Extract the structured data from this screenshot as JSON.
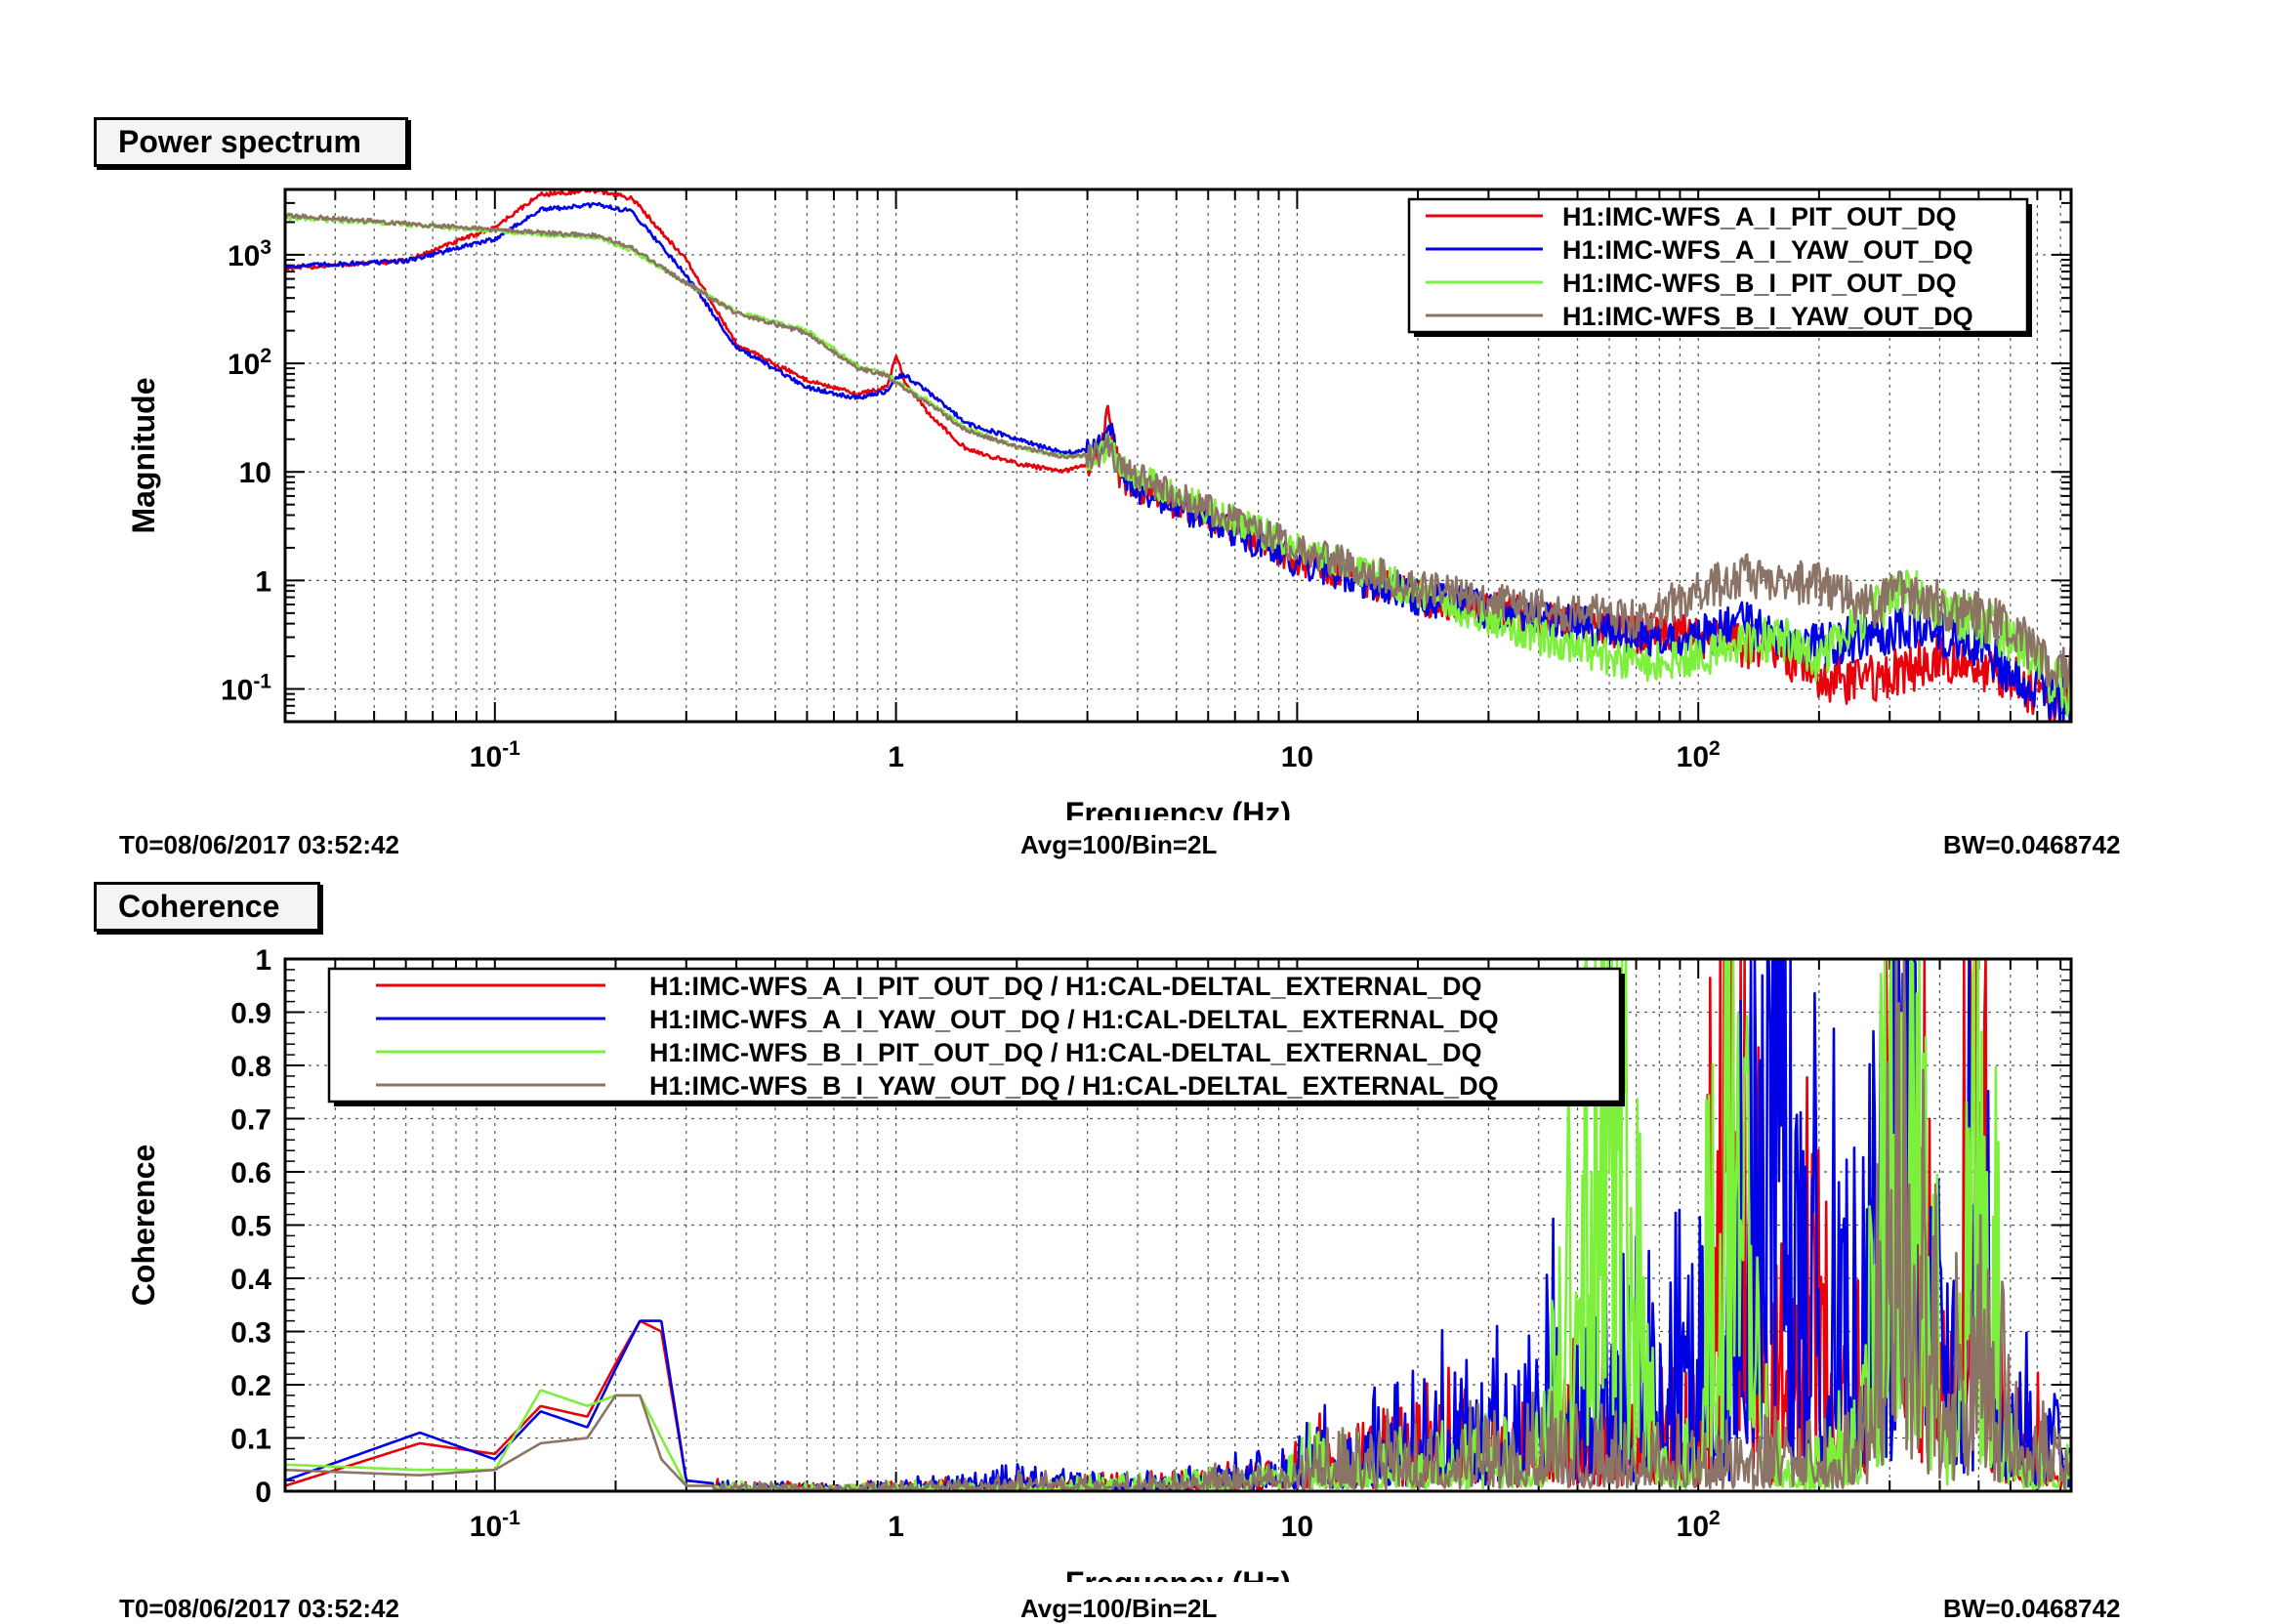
{
  "panels": [
    {
      "tab_label": "Power spectrum",
      "footer": {
        "t0": "T0=08/06/2017 03:52:42",
        "avg": "Avg=100/Bin=2L",
        "bw": "BW=0.0468742"
      }
    },
    {
      "tab_label": "Coherence",
      "footer": {
        "t0": "T0=08/06/2017 03:52:42",
        "avg": "Avg=100/Bin=2L",
        "bw": "BW=0.0468742"
      }
    }
  ],
  "colors": {
    "red": "#e8000b",
    "blue": "#0000e6",
    "green": "#7cf03a",
    "brown": "#8b7366"
  },
  "chart_data": [
    {
      "type": "line",
      "title": "Power spectrum",
      "xlabel": "Frequency (Hz)",
      "ylabel": "Magnitude",
      "xscale": "log",
      "yscale": "log",
      "xlim": [
        0.03,
        850
      ],
      "ylim": [
        0.05,
        4000
      ],
      "x_tick_labels": [
        "10^-1",
        "1",
        "10",
        "10^2"
      ],
      "y_tick_labels": [
        "10^-1",
        "1",
        "10",
        "10^2",
        "10^3"
      ],
      "grid": true,
      "legend_position": "top-right",
      "series": [
        {
          "name": "H1:IMC-WFS_A_I_PIT_OUT_DQ",
          "color": "#e8000b",
          "x": [
            0.03,
            0.06,
            0.1,
            0.13,
            0.18,
            0.22,
            0.3,
            0.4,
            0.6,
            0.8,
            0.95,
            1.0,
            1.05,
            1.2,
            1.5,
            2,
            2.6,
            3.2,
            3.4,
            3.6,
            4,
            6,
            10,
            20,
            40,
            70,
            100,
            130,
            160,
            200,
            260,
            330,
            400,
            500,
            600,
            800
          ],
          "y": [
            750,
            880,
            1800,
            3600,
            3900,
            3300,
            900,
            150,
            70,
            52,
            60,
            120,
            70,
            35,
            16,
            12,
            10,
            13,
            40,
            9,
            7,
            3.8,
            1.6,
            0.7,
            0.45,
            0.33,
            0.3,
            0.25,
            0.23,
            0.12,
            0.12,
            0.15,
            0.2,
            0.15,
            0.12,
            0.08
          ]
        },
        {
          "name": "H1:IMC-WFS_A_I_YAW_OUT_DQ",
          "color": "#0000e6",
          "x": [
            0.03,
            0.06,
            0.1,
            0.13,
            0.18,
            0.22,
            0.3,
            0.4,
            0.6,
            0.8,
            0.95,
            1.0,
            1.05,
            1.2,
            1.5,
            2,
            2.6,
            3.2,
            3.4,
            3.6,
            4,
            6,
            10,
            20,
            40,
            70,
            100,
            130,
            160,
            200,
            260,
            330,
            400,
            500,
            600,
            800
          ],
          "y": [
            780,
            880,
            1400,
            2600,
            2900,
            2500,
            650,
            140,
            60,
            48,
            55,
            75,
            78,
            55,
            28,
            20,
            15,
            16,
            28,
            10,
            7,
            3.5,
            1.5,
            0.7,
            0.45,
            0.32,
            0.3,
            0.4,
            0.3,
            0.25,
            0.3,
            0.4,
            0.35,
            0.25,
            0.15,
            0.08
          ]
        },
        {
          "name": "H1:IMC-WFS_B_I_PIT_OUT_DQ",
          "color": "#7cf03a",
          "x": [
            0.03,
            0.06,
            0.1,
            0.13,
            0.18,
            0.22,
            0.3,
            0.4,
            0.6,
            0.8,
            0.95,
            1.0,
            1.05,
            1.2,
            1.5,
            2,
            2.6,
            3.2,
            3.4,
            3.6,
            4,
            6,
            10,
            20,
            40,
            70,
            100,
            130,
            160,
            200,
            260,
            330,
            400,
            500,
            600,
            800
          ],
          "y": [
            2200,
            1900,
            1650,
            1550,
            1450,
            1100,
            550,
            300,
            200,
            95,
            80,
            68,
            60,
            45,
            25,
            17,
            14,
            14,
            18,
            11,
            9,
            4.5,
            2,
            0.8,
            0.3,
            0.18,
            0.2,
            0.25,
            0.3,
            0.18,
            0.5,
            0.8,
            0.6,
            0.4,
            0.3,
            0.1
          ]
        },
        {
          "name": "H1:IMC-WFS_B_I_YAW_OUT_DQ",
          "color": "#8b7366",
          "x": [
            0.03,
            0.06,
            0.1,
            0.13,
            0.18,
            0.22,
            0.3,
            0.4,
            0.6,
            0.8,
            0.95,
            1.0,
            1.05,
            1.2,
            1.5,
            2,
            2.6,
            3.2,
            3.4,
            3.6,
            4,
            6,
            10,
            20,
            40,
            70,
            100,
            130,
            160,
            200,
            260,
            330,
            400,
            500,
            600,
            800
          ],
          "y": [
            2300,
            1950,
            1700,
            1600,
            1500,
            1150,
            550,
            290,
            190,
            90,
            78,
            65,
            58,
            43,
            24,
            17,
            14,
            14,
            18,
            11,
            9,
            4.5,
            2,
            0.85,
            0.55,
            0.45,
            0.8,
            1.1,
            0.9,
            1.0,
            0.55,
            0.8,
            0.6,
            0.45,
            0.35,
            0.15
          ]
        }
      ]
    },
    {
      "type": "line",
      "title": "Coherence",
      "xlabel": "Frequency (Hz)",
      "ylabel": "Coherence",
      "xscale": "log",
      "yscale": "linear",
      "xlim": [
        0.03,
        850
      ],
      "ylim": [
        0,
        1
      ],
      "x_tick_labels": [
        "10^-1",
        "1",
        "10",
        "10^2"
      ],
      "y_tick_labels": [
        "0",
        "0.1",
        "0.2",
        "0.3",
        "0.4",
        "0.5",
        "0.6",
        "0.7",
        "0.8",
        "0.9",
        "1"
      ],
      "grid": true,
      "legend_position": "top-left",
      "series": [
        {
          "name": "H1:IMC-WFS_A_I_PIT_OUT_DQ / H1:CAL-DELTAL_EXTERNAL_DQ",
          "color": "#e8000b",
          "x": [
            0.03,
            0.065,
            0.1,
            0.13,
            0.17,
            0.2,
            0.23,
            0.26,
            0.3,
            0.4,
            0.6,
            1,
            2,
            4,
            8,
            10,
            15,
            20,
            30,
            40,
            60,
            80,
            100,
            120,
            150,
            180,
            250,
            330,
            420,
            480,
            600,
            800
          ],
          "y": [
            0.01,
            0.09,
            0.07,
            0.16,
            0.14,
            0.24,
            0.32,
            0.3,
            0.02,
            0.01,
            0.01,
            0.01,
            0.02,
            0.02,
            0.03,
            0.05,
            0.06,
            0.07,
            0.08,
            0.08,
            0.1,
            0.1,
            0.09,
            0.85,
            0.12,
            0.3,
            0.12,
            0.76,
            0.05,
            0.6,
            0.1,
            0.05
          ]
        },
        {
          "name": "H1:IMC-WFS_A_I_YAW_OUT_DQ / H1:CAL-DELTAL_EXTERNAL_DQ",
          "color": "#0000e6",
          "x": [
            0.03,
            0.065,
            0.1,
            0.13,
            0.17,
            0.2,
            0.23,
            0.26,
            0.3,
            0.4,
            0.6,
            1,
            2,
            4,
            8,
            10,
            15,
            20,
            30,
            40,
            60,
            80,
            100,
            120,
            150,
            180,
            250,
            330,
            420,
            480,
            600,
            800
          ],
          "y": [
            0.02,
            0.11,
            0.06,
            0.15,
            0.12,
            0.23,
            0.32,
            0.32,
            0.02,
            0.01,
            0.01,
            0.01,
            0.03,
            0.02,
            0.04,
            0.05,
            0.07,
            0.1,
            0.12,
            0.16,
            0.16,
            0.18,
            0.22,
            0.2,
            0.75,
            0.35,
            0.3,
            0.6,
            0.2,
            0.4,
            0.15,
            0.07
          ]
        },
        {
          "name": "H1:IMC-WFS_B_I_PIT_OUT_DQ / H1:CAL-DELTAL_EXTERNAL_DQ",
          "color": "#7cf03a",
          "x": [
            0.03,
            0.065,
            0.1,
            0.13,
            0.17,
            0.2,
            0.23,
            0.26,
            0.3,
            0.4,
            0.6,
            1,
            2,
            4,
            8,
            10,
            15,
            20,
            30,
            40,
            60,
            80,
            100,
            120,
            150,
            180,
            250,
            330,
            420,
            480,
            600,
            800
          ],
          "y": [
            0.05,
            0.04,
            0.04,
            0.19,
            0.16,
            0.18,
            0.18,
            0.1,
            0.01,
            0.01,
            0.01,
            0.01,
            0.01,
            0.02,
            0.03,
            0.06,
            0.04,
            0.04,
            0.05,
            0.06,
            0.72,
            0.05,
            0.05,
            0.9,
            0.05,
            0.03,
            0.08,
            0.85,
            0.05,
            0.62,
            0.06,
            0.03
          ]
        },
        {
          "name": "H1:IMC-WFS_B_I_YAW_OUT_DQ / H1:CAL-DELTAL_EXTERNAL_DQ",
          "color": "#8b7366",
          "x": [
            0.03,
            0.065,
            0.1,
            0.13,
            0.17,
            0.2,
            0.23,
            0.26,
            0.3,
            0.4,
            0.6,
            1,
            2,
            4,
            8,
            10,
            15,
            20,
            30,
            40,
            60,
            80,
            100,
            120,
            150,
            180,
            250,
            330,
            420,
            480,
            600,
            800
          ],
          "y": [
            0.04,
            0.03,
            0.04,
            0.09,
            0.1,
            0.18,
            0.18,
            0.06,
            0.01,
            0.01,
            0.01,
            0.01,
            0.02,
            0.02,
            0.03,
            0.04,
            0.05,
            0.05,
            0.06,
            0.07,
            0.06,
            0.06,
            0.05,
            0.06,
            0.05,
            0.05,
            0.06,
            0.55,
            0.1,
            0.35,
            0.1,
            0.05
          ]
        }
      ]
    }
  ]
}
